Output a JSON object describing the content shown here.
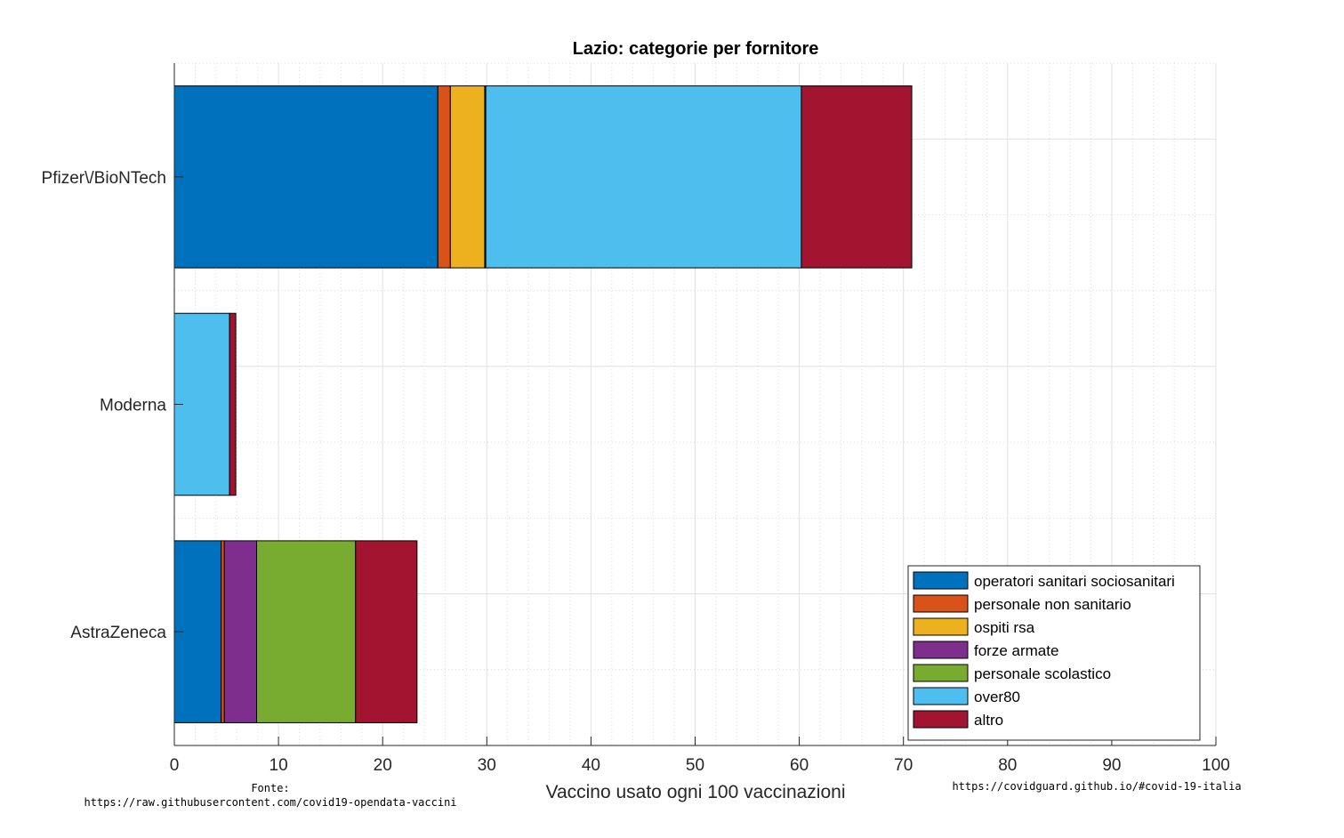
{
  "chart_data": {
    "type": "bar",
    "orientation": "horizontal",
    "stacked": true,
    "title": "Lazio: categorie per fornitore",
    "xlabel": "Vaccino usato ogni 100 vaccinazioni",
    "ylabel": "",
    "xlim": [
      0,
      100
    ],
    "xticks": [
      "0",
      "10",
      "20",
      "30",
      "40",
      "50",
      "60",
      "70",
      "80",
      "90",
      "100"
    ],
    "grid": true,
    "legend_position": "bottom-right",
    "categories": [
      "Pfizer\\/BioNTech",
      "Moderna",
      "AstraZeneca"
    ],
    "series": [
      {
        "name": "operatori sanitari sociosanitari",
        "color": "#0072BD",
        "values": [
          25.3,
          0.0,
          4.5
        ]
      },
      {
        "name": "personale non sanitario",
        "color": "#D95319",
        "values": [
          1.2,
          0.0,
          0.3
        ]
      },
      {
        "name": "ospiti rsa",
        "color": "#EDB120",
        "values": [
          3.3,
          0.0,
          0.0
        ]
      },
      {
        "name": "forze armate",
        "color": "#7E2F8E",
        "values": [
          0.0,
          0.0,
          3.1
        ]
      },
      {
        "name": "personale scolastico",
        "color": "#77AC30",
        "values": [
          0.1,
          0.0,
          9.5
        ]
      },
      {
        "name": "over80",
        "color": "#4DBEEE",
        "values": [
          30.3,
          5.3,
          0.0
        ]
      },
      {
        "name": "altro",
        "color": "#A2142F",
        "values": [
          10.6,
          0.6,
          5.9
        ]
      }
    ]
  },
  "footer": {
    "source_label": "Fonte:",
    "source_url": "https://raw.githubusercontent.com/covid19-opendata-vaccini",
    "site_url": "https://covidguard.github.io/#covid-19-italia"
  }
}
